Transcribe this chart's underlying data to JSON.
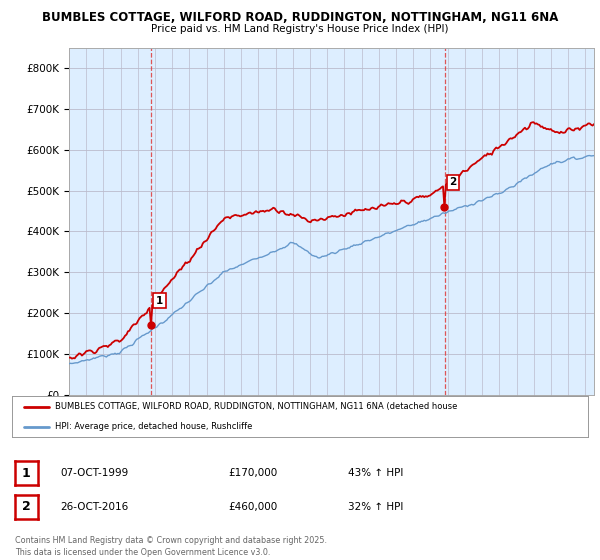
{
  "title1": "BUMBLES COTTAGE, WILFORD ROAD, RUDDINGTON, NOTTINGHAM, NG11 6NA",
  "title2": "Price paid vs. HM Land Registry's House Price Index (HPI)",
  "ylim": [
    0,
    850000
  ],
  "yticks": [
    0,
    100000,
    200000,
    300000,
    400000,
    500000,
    600000,
    700000,
    800000
  ],
  "ytick_labels": [
    "£0",
    "£100K",
    "£200K",
    "£300K",
    "£400K",
    "£500K",
    "£600K",
    "£700K",
    "£800K"
  ],
  "sale1": {
    "date_num": 1999.77,
    "price": 170000,
    "label": "1",
    "date_str": "07-OCT-1999",
    "pct": "43% ↑ HPI"
  },
  "sale2": {
    "date_num": 2016.82,
    "price": 460000,
    "label": "2",
    "date_str": "26-OCT-2016",
    "pct": "32% ↑ HPI"
  },
  "line_red_color": "#cc0000",
  "line_blue_color": "#6699cc",
  "dashed_red": "#dd4444",
  "chart_bg_color": "#ddeeff",
  "bg_color": "#ffffff",
  "grid_color": "#bbbbcc",
  "legend_label_red": "BUMBLES COTTAGE, WILFORD ROAD, RUDDINGTON, NOTTINGHAM, NG11 6NA (detached house",
  "legend_label_blue": "HPI: Average price, detached house, Rushcliffe",
  "footer": "Contains HM Land Registry data © Crown copyright and database right 2025.\nThis data is licensed under the Open Government Licence v3.0.",
  "xlim_start": 1995.0,
  "xlim_end": 2025.5,
  "sale1_y": 170000,
  "sale2_y": 460000
}
